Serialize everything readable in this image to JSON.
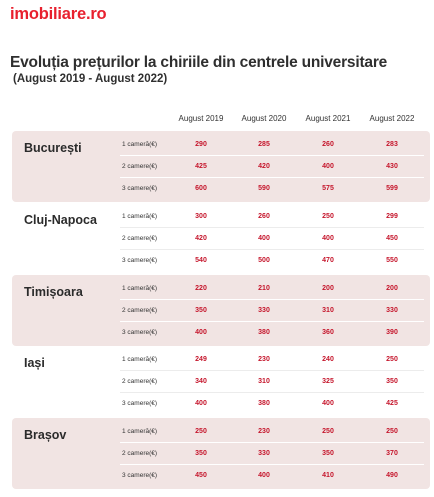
{
  "logo": "imobiliare.ro",
  "title": "Evoluția prețurilor la chiriile din centrele universitare",
  "subtitle": "(August 2019 - August 2022)",
  "columns": [
    "August 2019",
    "August 2020",
    "August 2021",
    "August 2022"
  ],
  "row_labels": [
    "1 cameră(€)",
    "2 camere(€)",
    "3 camere(€)"
  ],
  "colors": {
    "accent": "#e8202e",
    "value": "#c5152b",
    "shade": "#f1e4e3"
  },
  "cities": [
    {
      "name": "București",
      "shaded": true,
      "rows": [
        [
          "290",
          "285",
          "260",
          "283"
        ],
        [
          "425",
          "420",
          "400",
          "430"
        ],
        [
          "600",
          "590",
          "575",
          "599"
        ]
      ]
    },
    {
      "name": "Cluj-Napoca",
      "shaded": false,
      "rows": [
        [
          "300",
          "260",
          "250",
          "299"
        ],
        [
          "420",
          "400",
          "400",
          "450"
        ],
        [
          "540",
          "500",
          "470",
          "550"
        ]
      ]
    },
    {
      "name": "Timișoara",
      "shaded": true,
      "rows": [
        [
          "220",
          "210",
          "200",
          "200"
        ],
        [
          "350",
          "330",
          "310",
          "330"
        ],
        [
          "400",
          "380",
          "360",
          "390"
        ]
      ]
    },
    {
      "name": "Iași",
      "shaded": false,
      "rows": [
        [
          "249",
          "230",
          "240",
          "250"
        ],
        [
          "340",
          "310",
          "325",
          "350"
        ],
        [
          "400",
          "380",
          "400",
          "425"
        ]
      ]
    },
    {
      "name": "Brașov",
      "shaded": true,
      "rows": [
        [
          "250",
          "230",
          "250",
          "250"
        ],
        [
          "350",
          "330",
          "350",
          "370"
        ],
        [
          "450",
          "400",
          "410",
          "490"
        ]
      ]
    }
  ]
}
